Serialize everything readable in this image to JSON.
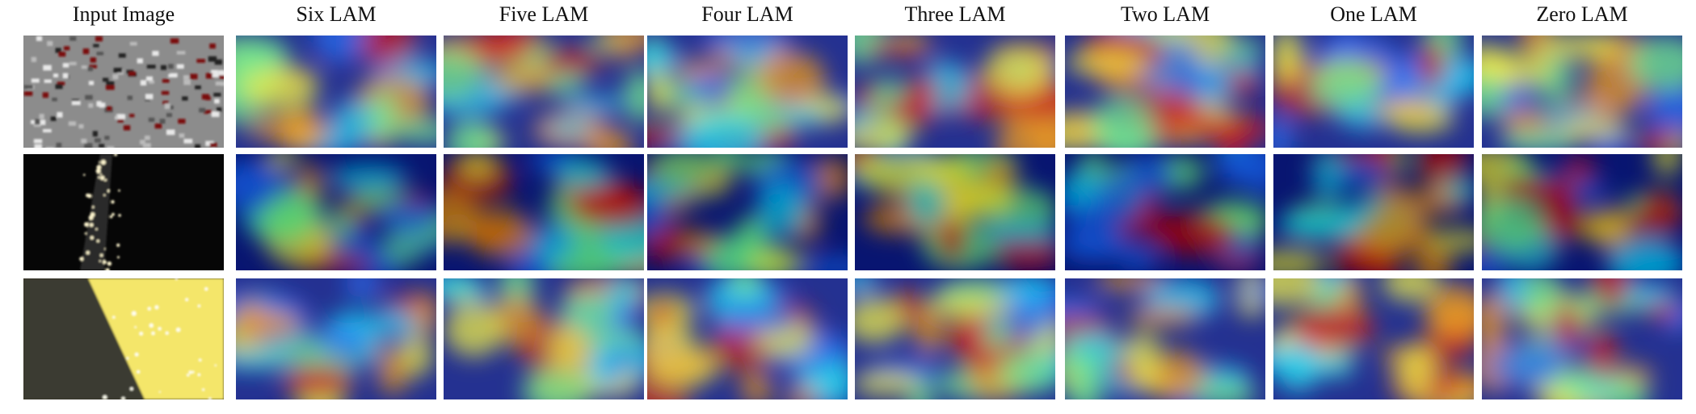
{
  "header": {
    "columns": [
      "Input Image",
      "Six LAM",
      "Five LAM",
      "Four LAM",
      "Three LAM",
      "Two LAM",
      "One LAM",
      "Zero LAM"
    ]
  }
}
